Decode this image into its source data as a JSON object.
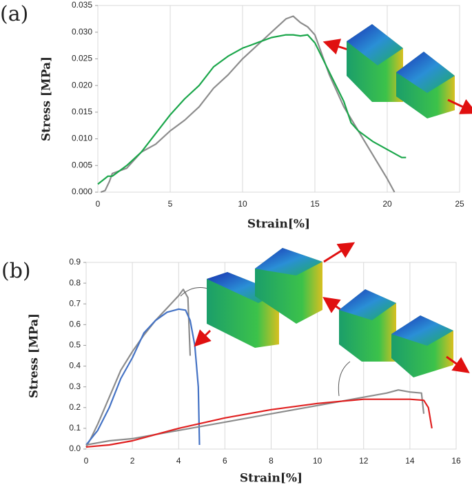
{
  "chart_data": [
    {
      "type": "line",
      "panel_label": "(a)",
      "x_label": "Strain[%]",
      "y_label": "Stress [MPa]",
      "xlim": [
        0,
        25
      ],
      "xticks": [
        0,
        5,
        10,
        15,
        20,
        25
      ],
      "ylim": [
        0,
        0.035
      ],
      "yticks": [
        {
          "value": 0,
          "label": "0.000"
        },
        {
          "value": 0.005,
          "label": "0.005"
        },
        {
          "value": 0.01,
          "label": "0.010"
        },
        {
          "value": 0.015,
          "label": "0.015"
        },
        {
          "value": 0.02,
          "label": "0.020"
        },
        {
          "value": 0.025,
          "label": "0.025"
        },
        {
          "value": 0.03,
          "label": "0.030"
        },
        {
          "value": 0.035,
          "label": "0.035"
        }
      ],
      "grid": true,
      "series": [
        {
          "color": "#8c8c8c",
          "x": [
            0.2,
            0.5,
            0.8,
            1,
            2,
            3,
            4,
            5,
            6,
            7,
            8,
            9,
            10,
            11,
            12,
            13,
            13.5,
            14,
            14.5,
            15,
            16,
            17,
            18,
            19,
            20,
            20.5
          ],
          "values": [
            0,
            0.0003,
            0.002,
            0.0035,
            0.0045,
            0.0075,
            0.009,
            0.0115,
            0.0135,
            0.016,
            0.0195,
            0.022,
            0.025,
            0.0275,
            0.03,
            0.0325,
            0.033,
            0.0318,
            0.031,
            0.0295,
            0.022,
            0.016,
            0.0115,
            0.007,
            0.0025,
            0
          ]
        },
        {
          "color": "#1aa64a",
          "x": [
            0,
            0.7,
            1,
            2,
            3,
            4,
            5,
            6,
            7,
            8,
            9,
            10,
            10.5,
            11,
            12,
            13,
            13.5,
            14,
            14.5,
            15,
            16,
            17,
            17.5,
            18,
            19,
            20,
            21,
            21.3
          ],
          "values": [
            0.0015,
            0.003,
            0.003,
            0.005,
            0.0075,
            0.011,
            0.0145,
            0.0175,
            0.02,
            0.0235,
            0.0255,
            0.027,
            0.0275,
            0.028,
            0.029,
            0.0295,
            0.0295,
            0.0293,
            0.0295,
            0.028,
            0.0225,
            0.017,
            0.013,
            0.0115,
            0.0095,
            0.008,
            0.0065,
            0.0065
          ]
        }
      ]
    },
    {
      "type": "line",
      "panel_label": "(b)",
      "x_label": "Strain[%]",
      "y_label": "Stress [MPa]",
      "xlim": [
        0,
        16
      ],
      "xticks": [
        0,
        2,
        4,
        6,
        8,
        10,
        12,
        14,
        16
      ],
      "ylim": [
        0,
        0.9
      ],
      "yticks": [
        {
          "value": 0,
          "label": "0.0"
        },
        0.1,
        0.2,
        0.3,
        0.4,
        0.5,
        0.6,
        0.7,
        0.8,
        0.9
      ],
      "grid": true,
      "series": [
        {
          "color": "#8c8c8c",
          "x": [
            0,
            0.2,
            0.5,
            1,
            1.5,
            2,
            2.5,
            3,
            3.5,
            4,
            4.2,
            4.4,
            4.5
          ],
          "values": [
            0.01,
            0.05,
            0.12,
            0.25,
            0.38,
            0.47,
            0.55,
            0.62,
            0.68,
            0.74,
            0.77,
            0.73,
            0.45
          ]
        },
        {
          "color": "#4472c4",
          "x": [
            0,
            0.5,
            1,
            1.5,
            2,
            2.5,
            3,
            3.5,
            4,
            4.3,
            4.5,
            4.7,
            4.85,
            4.9
          ],
          "values": [
            0.02,
            0.09,
            0.2,
            0.34,
            0.44,
            0.56,
            0.62,
            0.66,
            0.675,
            0.67,
            0.62,
            0.5,
            0.3,
            0.02
          ]
        },
        {
          "color": "#8c8c8c",
          "x": [
            0,
            1,
            2,
            4,
            6,
            8,
            10,
            12,
            13,
            13.5,
            14,
            14.5,
            14.6
          ],
          "values": [
            0.02,
            0.04,
            0.05,
            0.09,
            0.13,
            0.17,
            0.21,
            0.25,
            0.27,
            0.285,
            0.275,
            0.27,
            0.17
          ]
        },
        {
          "color": "#e02020",
          "x": [
            0,
            1,
            2,
            4,
            6,
            8,
            10,
            11,
            12,
            13,
            14,
            14.6,
            14.8,
            14.95
          ],
          "values": [
            0.01,
            0.02,
            0.04,
            0.1,
            0.15,
            0.19,
            0.22,
            0.23,
            0.24,
            0.24,
            0.24,
            0.235,
            0.2,
            0.1
          ]
        }
      ]
    }
  ]
}
